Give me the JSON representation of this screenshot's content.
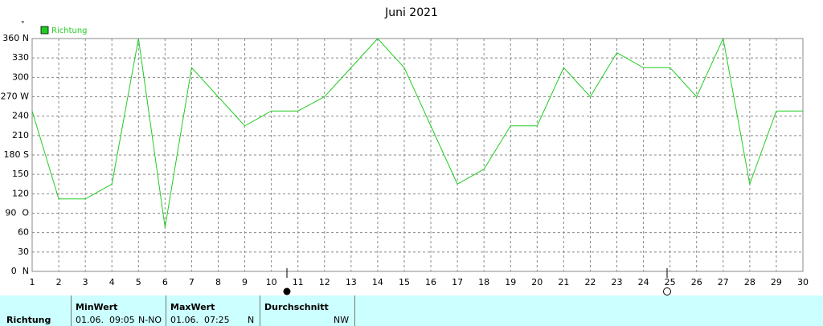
{
  "chart_data": {
    "type": "line",
    "title": "Juni 2021",
    "unit": "°",
    "x": [
      1,
      2,
      3,
      4,
      5,
      6,
      7,
      8,
      9,
      10,
      11,
      12,
      13,
      14,
      15,
      16,
      17,
      18,
      19,
      20,
      21,
      22,
      23,
      24,
      25,
      26,
      27,
      28,
      29,
      30
    ],
    "series": [
      {
        "name": "Richtung",
        "color": "#22cc22",
        "values": [
          248,
          112,
          112,
          135,
          360,
          68,
          315,
          270,
          225,
          248,
          248,
          270,
          315,
          360,
          315,
          225,
          135,
          158,
          225,
          225,
          315,
          270,
          338,
          315,
          315,
          270,
          360,
          135,
          248,
          248
        ]
      }
    ],
    "xlim": [
      1,
      30
    ],
    "xticks": [
      1,
      2,
      3,
      4,
      5,
      6,
      7,
      8,
      9,
      10,
      11,
      12,
      13,
      14,
      15,
      16,
      17,
      18,
      19,
      20,
      21,
      22,
      23,
      24,
      25,
      26,
      27,
      28,
      29,
      30
    ],
    "ylim": [
      0,
      360
    ],
    "yticks": [
      {
        "value": 0,
        "label": "0  N"
      },
      30,
      60,
      {
        "value": 90,
        "label": "90  O"
      },
      120,
      150,
      {
        "value": 180,
        "label": "180 S"
      },
      210,
      240,
      {
        "value": 270,
        "label": "270 W"
      },
      300,
      330,
      {
        "value": 360,
        "label": "360 N"
      }
    ],
    "grid": true,
    "legend": "top-left"
  },
  "table": {
    "row_label": "Richtung",
    "columns": [
      {
        "header": "MinWert",
        "time": "01.06.  09:05",
        "value": "N-NO"
      },
      {
        "header": "MaxWert",
        "time": "01.06.  07:25",
        "value": "N"
      },
      {
        "header": "Durchschnitt",
        "value": "NW"
      }
    ]
  }
}
